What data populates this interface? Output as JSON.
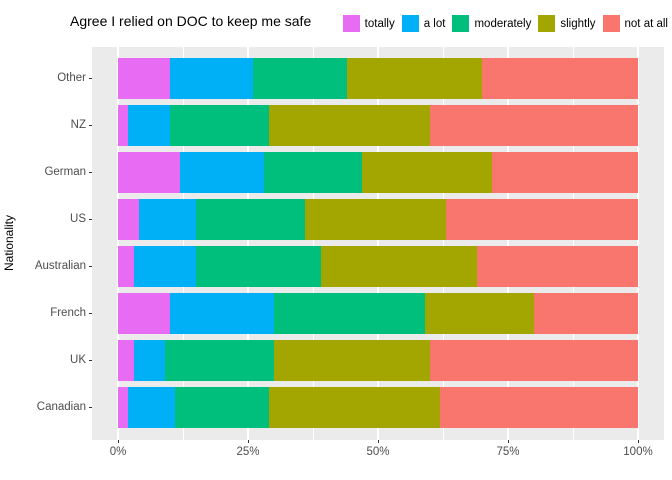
{
  "chart_data": {
    "type": "bar",
    "stacked": true,
    "normalized": "percent",
    "orientation": "horizontal",
    "title": "Agree I relied on DOC to keep me safe",
    "xlabel": "",
    "ylabel": "Nationality",
    "xlim": [
      0,
      100
    ],
    "x_ticks": [
      {
        "value": 0,
        "label": "0%"
      },
      {
        "value": 25,
        "label": "25%"
      },
      {
        "value": 50,
        "label": "50%"
      },
      {
        "value": 75,
        "label": "75%"
      },
      {
        "value": 100,
        "label": "100%"
      }
    ],
    "x_minor_ticks": [
      12.5,
      37.5,
      62.5,
      87.5
    ],
    "grid": true,
    "legend_position": "top-right",
    "panel_background": "#EBEBEB",
    "gridline_color": "#FFFFFF",
    "axis_text_color": "#4D4D4D",
    "categories": [
      "Other",
      "NZ",
      "German",
      "US",
      "Australian",
      "French",
      "UK",
      "Canadian"
    ],
    "series": [
      {
        "name": "totally",
        "color": "#E76BF3",
        "values": [
          10,
          2,
          12,
          4,
          3,
          10,
          3,
          2
        ]
      },
      {
        "name": "a lot",
        "color": "#00B0F6",
        "values": [
          16,
          8,
          16,
          11,
          12,
          20,
          6,
          9
        ]
      },
      {
        "name": "moderately",
        "color": "#00BF7D",
        "values": [
          18,
          19,
          19,
          21,
          24,
          29,
          21,
          18
        ]
      },
      {
        "name": "slightly",
        "color": "#A3A500",
        "values": [
          26,
          31,
          25,
          27,
          30,
          21,
          30,
          33
        ]
      },
      {
        "name": "not at all",
        "color": "#F8766D",
        "values": [
          30,
          40,
          28,
          37,
          31,
          20,
          40,
          38
        ]
      }
    ]
  }
}
